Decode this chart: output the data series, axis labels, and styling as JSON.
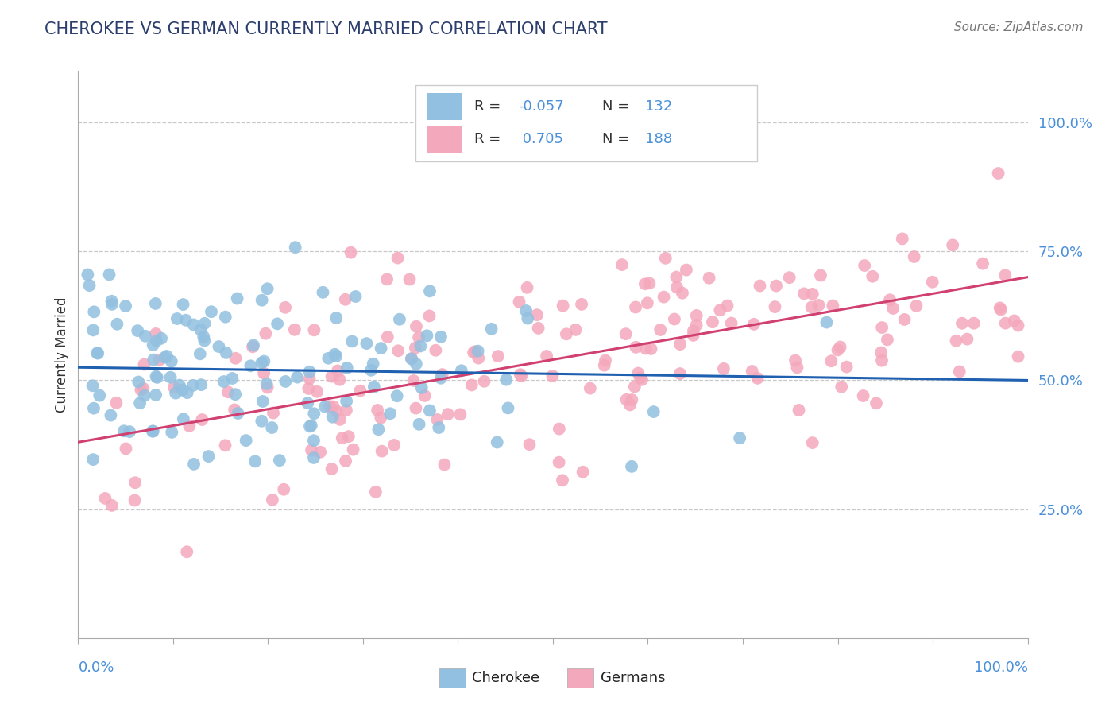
{
  "title": "CHEROKEE VS GERMAN CURRENTLY MARRIED CORRELATION CHART",
  "source": "Source: ZipAtlas.com",
  "ylabel": "Currently Married",
  "legend_cherokee_r": "-0.057",
  "legend_cherokee_n": "132",
  "legend_german_r": "0.705",
  "legend_german_n": "188",
  "cherokee_color": "#92c0e0",
  "german_color": "#f4a8bc",
  "cherokee_line_color": "#2060b0",
  "german_line_color": "#d04070",
  "legend_r_color": "#e05080",
  "legend_n_color": "#4a90d9",
  "axis_label_color": "#4a90d9",
  "background_color": "#ffffff",
  "y_tick_labels": [
    "25.0%",
    "50.0%",
    "75.0%",
    "100.0%"
  ],
  "y_tick_positions": [
    0.25,
    0.5,
    0.75,
    1.0
  ],
  "xlim": [
    0.0,
    1.0
  ],
  "ylim": [
    0.0,
    1.1
  ],
  "cherokee_line_start_y": 0.525,
  "cherokee_line_end_y": 0.5,
  "german_line_start_y": 0.38,
  "german_line_end_y": 0.7
}
